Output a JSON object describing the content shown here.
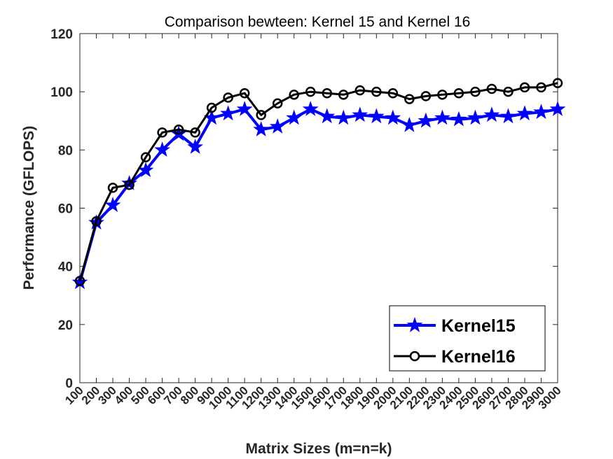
{
  "chart_data": {
    "type": "line",
    "title": "Comparison bewteen: Kernel 15 and Kernel 16",
    "xlabel": "Matrix Sizes (m=n=k)",
    "ylabel": "Performance (GFLOPS)",
    "ylim": [
      0,
      120
    ],
    "yticks": [
      0,
      20,
      40,
      60,
      80,
      100,
      120
    ],
    "x": [
      100,
      200,
      300,
      400,
      500,
      600,
      700,
      800,
      900,
      1000,
      1100,
      1200,
      1300,
      1400,
      1500,
      1600,
      1700,
      1800,
      1900,
      2000,
      2100,
      2200,
      2300,
      2400,
      2500,
      2600,
      2700,
      2800,
      2900,
      3000
    ],
    "grid": false,
    "legend_position": "bottom-right",
    "series": [
      {
        "name": "Kernel15",
        "color": "#0000ff",
        "marker": "star",
        "values": [
          34.5,
          55,
          61,
          68.5,
          73,
          80,
          85.5,
          81,
          91,
          92.5,
          94,
          87,
          88,
          91,
          94,
          91.5,
          91,
          92,
          91.5,
          91,
          88.5,
          90,
          91,
          90.5,
          91,
          92,
          91.5,
          92.5,
          93,
          94
        ]
      },
      {
        "name": "Kernel16",
        "color": "#000000",
        "marker": "circle",
        "values": [
          35,
          55.5,
          67,
          68,
          77.5,
          86,
          87,
          86,
          94.5,
          98,
          99.5,
          92,
          96,
          99,
          100,
          99.5,
          99,
          100.5,
          100,
          99.5,
          97.5,
          98.5,
          99,
          99.5,
          100,
          101,
          100,
          101.5,
          101.5,
          103
        ]
      }
    ]
  }
}
